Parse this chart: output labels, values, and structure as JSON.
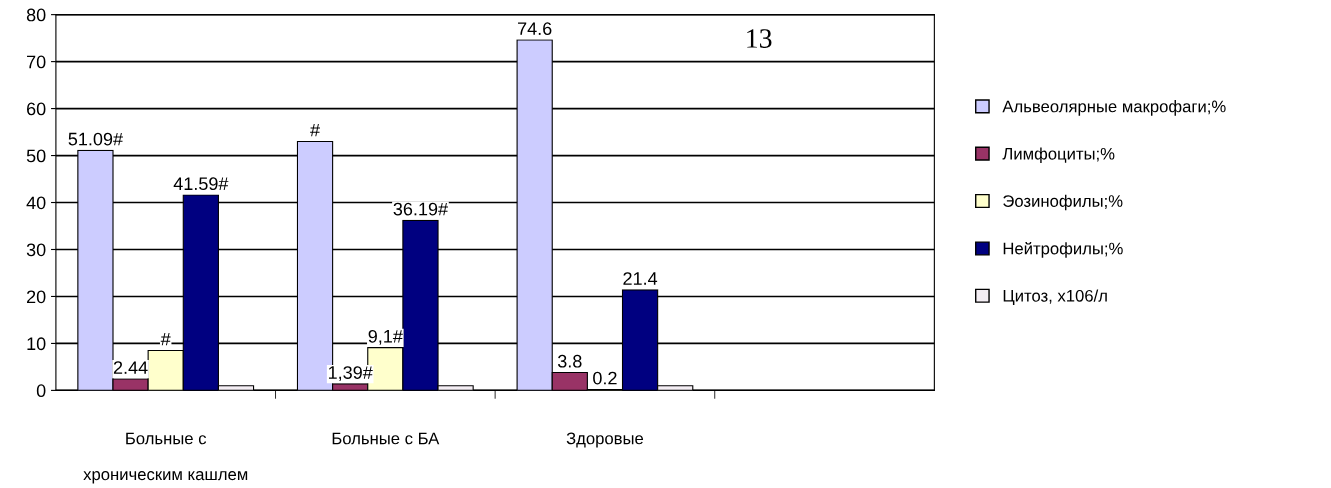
{
  "chart_data": {
    "type": "bar",
    "categories": [
      "Больные с\n\nхроническим кашлем",
      "Больные с БА",
      "Здоровые",
      null
    ],
    "series": [
      {
        "name": "Альвеолярные макрофаги;%",
        "color": "#ccccff",
        "values": [
          51.09,
          53,
          74.6,
          null
        ],
        "value_labels": [
          "51.09#",
          "#",
          "74.6",
          null
        ]
      },
      {
        "name": "Лимфоциты;%",
        "color": "#993366",
        "values": [
          2.44,
          1.39,
          3.8,
          null
        ],
        "value_labels": [
          "2.44",
          "1,39#",
          "3.8",
          null
        ]
      },
      {
        "name": "Эозинофилы;%",
        "color": "#ffffcc",
        "values": [
          8.5,
          9.1,
          0.2,
          null
        ],
        "value_labels": [
          "#",
          "9,1#",
          "0.2",
          null
        ]
      },
      {
        "name": "Нейтрофилы;%",
        "color": "#000080",
        "values": [
          41.59,
          36.19,
          21.4,
          null
        ],
        "value_labels": [
          "41.59#",
          "36.19#",
          "21.4",
          null
        ]
      },
      {
        "name": "Цитоз, х106/л",
        "color": "#f4eef4",
        "values": [
          1,
          1,
          1,
          null
        ],
        "value_labels": [
          null,
          null,
          null,
          null
        ]
      }
    ],
    "ylim": [
      0,
      80
    ],
    "yticks": [
      0,
      10,
      20,
      30,
      40,
      50,
      60,
      70,
      80
    ],
    "grid": "y",
    "legend": "right",
    "annotations": [
      "13"
    ]
  }
}
